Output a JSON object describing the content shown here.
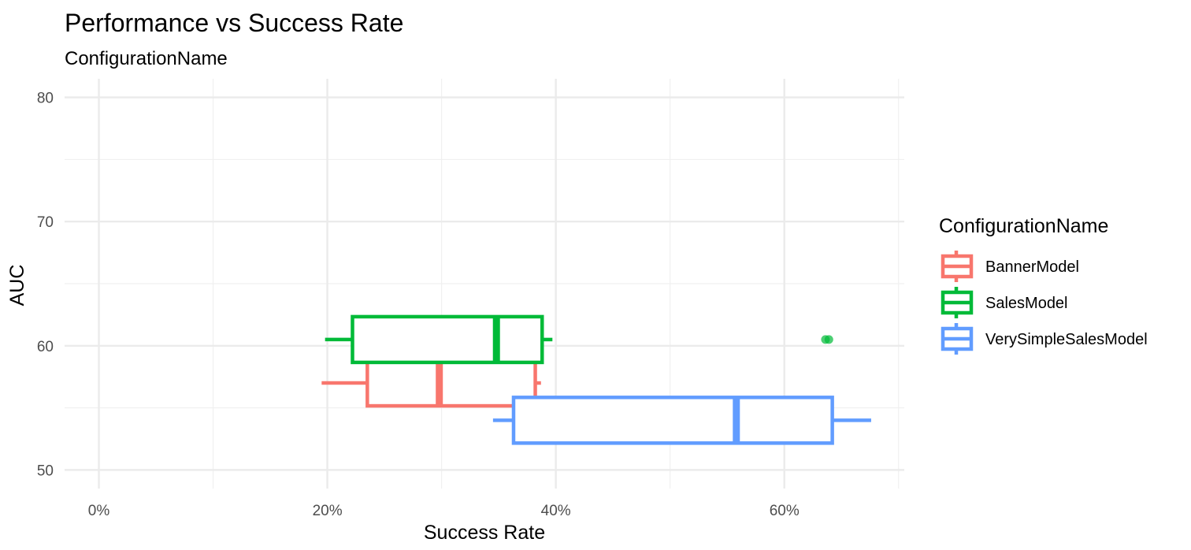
{
  "chart_data": {
    "type": "boxplot",
    "orientation": "horizontal",
    "title": "Performance vs Success Rate",
    "subtitle": "ConfigurationName",
    "xlabel": "Success Rate",
    "ylabel": "AUC",
    "xlim": [
      -3,
      70.5
    ],
    "ylim": [
      48.5,
      81.5
    ],
    "x_ticks": [
      0,
      20,
      40,
      60
    ],
    "x_tick_labels": [
      "0%",
      "20%",
      "40%",
      "60%"
    ],
    "y_ticks": [
      50,
      60,
      70,
      80
    ],
    "y_tick_labels": [
      "50",
      "60",
      "70",
      "80"
    ],
    "grid": true,
    "legend": {
      "title": "ConfigurationName",
      "position": "right"
    },
    "series": [
      {
        "name": "BannerModel",
        "color": "#F8766D",
        "y": 57.0,
        "whisker_low": 19.5,
        "q1": 23.5,
        "median": 29.8,
        "q3": 38.2,
        "whisker_high": 38.7,
        "outliers": []
      },
      {
        "name": "SalesModel",
        "color": "#00BA38",
        "y": 60.5,
        "whisker_low": 19.8,
        "q1": 22.2,
        "median": 34.8,
        "q3": 38.8,
        "whisker_high": 39.7,
        "outliers": [
          63.6,
          63.9
        ]
      },
      {
        "name": "VerySimpleSalesModel",
        "color": "#619CFF",
        "y": 54.0,
        "whisker_low": 34.5,
        "q1": 36.3,
        "median": 55.8,
        "q3": 64.2,
        "whisker_high": 67.6,
        "outliers": []
      }
    ]
  }
}
